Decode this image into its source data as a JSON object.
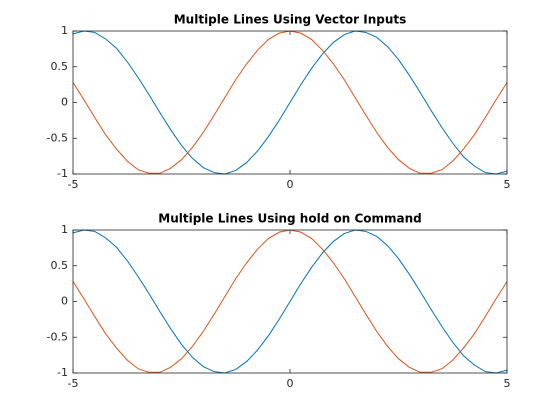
{
  "chart_data": [
    {
      "type": "line",
      "title": "Multiple Lines Using Vector Inputs",
      "x": [
        -5,
        -4.75,
        -4.5,
        -4.25,
        -4,
        -3.75,
        -3.5,
        -3.25,
        -3,
        -2.75,
        -2.5,
        -2.25,
        -2,
        -1.75,
        -1.5,
        -1.25,
        -1,
        -0.75,
        -0.5,
        -0.25,
        0,
        0.25,
        0.5,
        0.75,
        1,
        1.25,
        1.5,
        1.75,
        2,
        2.25,
        2.5,
        2.75,
        3,
        3.25,
        3.5,
        3.75,
        4,
        4.25,
        4.5,
        4.75,
        5
      ],
      "series": [
        {
          "color": "#0072BD",
          "values": [
            0.96,
            1.0,
            0.98,
            0.89,
            0.76,
            0.57,
            0.35,
            0.11,
            -0.14,
            -0.38,
            -0.6,
            -0.78,
            -0.91,
            -0.98,
            -1.0,
            -0.95,
            -0.84,
            -0.68,
            -0.48,
            -0.25,
            0,
            0.25,
            0.48,
            0.68,
            0.84,
            0.95,
            1.0,
            0.98,
            0.91,
            0.78,
            0.6,
            0.38,
            0.14,
            -0.11,
            -0.35,
            -0.57,
            -0.76,
            -0.89,
            -0.98,
            -1.0,
            -0.96
          ]
        },
        {
          "color": "#D95319",
          "values": [
            0.28,
            0.04,
            -0.21,
            -0.45,
            -0.65,
            -0.82,
            -0.94,
            -0.99,
            -0.99,
            -0.92,
            -0.8,
            -0.63,
            -0.42,
            -0.18,
            0.07,
            0.32,
            0.54,
            0.73,
            0.88,
            0.97,
            1,
            0.97,
            0.88,
            0.73,
            0.54,
            0.32,
            0.07,
            -0.18,
            -0.42,
            -0.63,
            -0.8,
            -0.92,
            -0.99,
            -0.99,
            -0.94,
            -0.82,
            -0.65,
            -0.45,
            -0.21,
            0.04,
            0.28
          ]
        }
      ],
      "xlim": [
        -5,
        5
      ],
      "xticks": [
        -5,
        0,
        5
      ],
      "ylim": [
        -1,
        1
      ],
      "yticks": [
        -1,
        -0.5,
        0,
        0.5,
        1
      ],
      "grid": false
    },
    {
      "type": "line",
      "title": "Multiple Lines Using hold on Command",
      "x": [
        -5,
        -4.75,
        -4.5,
        -4.25,
        -4,
        -3.75,
        -3.5,
        -3.25,
        -3,
        -2.75,
        -2.5,
        -2.25,
        -2,
        -1.75,
        -1.5,
        -1.25,
        -1,
        -0.75,
        -0.5,
        -0.25,
        0,
        0.25,
        0.5,
        0.75,
        1,
        1.25,
        1.5,
        1.75,
        2,
        2.25,
        2.5,
        2.75,
        3,
        3.25,
        3.5,
        3.75,
        4,
        4.25,
        4.5,
        4.75,
        5
      ],
      "series": [
        {
          "color": "#0072BD",
          "values": [
            0.96,
            1.0,
            0.98,
            0.89,
            0.76,
            0.57,
            0.35,
            0.11,
            -0.14,
            -0.38,
            -0.6,
            -0.78,
            -0.91,
            -0.98,
            -1.0,
            -0.95,
            -0.84,
            -0.68,
            -0.48,
            -0.25,
            0,
            0.25,
            0.48,
            0.68,
            0.84,
            0.95,
            1.0,
            0.98,
            0.91,
            0.78,
            0.6,
            0.38,
            0.14,
            -0.11,
            -0.35,
            -0.57,
            -0.76,
            -0.89,
            -0.98,
            -1.0,
            -0.96
          ]
        },
        {
          "color": "#D95319",
          "values": [
            0.28,
            0.04,
            -0.21,
            -0.45,
            -0.65,
            -0.82,
            -0.94,
            -0.99,
            -0.99,
            -0.92,
            -0.8,
            -0.63,
            -0.42,
            -0.18,
            0.07,
            0.32,
            0.54,
            0.73,
            0.88,
            0.97,
            1,
            0.97,
            0.88,
            0.73,
            0.54,
            0.32,
            0.07,
            -0.18,
            -0.42,
            -0.63,
            -0.8,
            -0.92,
            -0.99,
            -0.99,
            -0.94,
            -0.82,
            -0.65,
            -0.45,
            -0.21,
            0.04,
            0.28
          ]
        }
      ],
      "xlim": [
        -5,
        5
      ],
      "xticks": [
        -5,
        0,
        5
      ],
      "ylim": [
        -1,
        1
      ],
      "yticks": [
        -1,
        -0.5,
        0,
        0.5,
        1
      ],
      "grid": false
    }
  ]
}
